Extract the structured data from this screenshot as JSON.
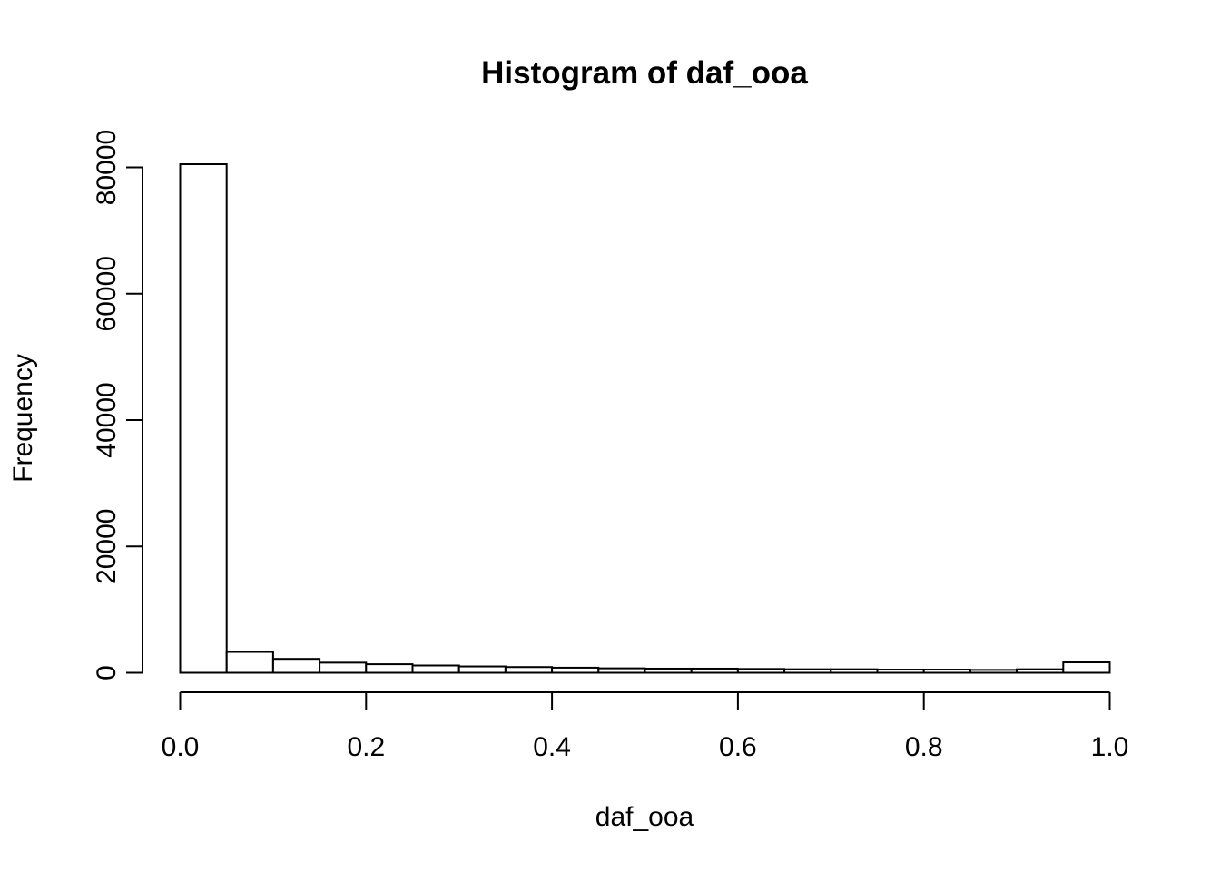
{
  "chart_data": {
    "type": "bar",
    "title": "Histogram of daf_ooa",
    "xlabel": "daf_ooa",
    "ylabel": "Frequency",
    "xlim": [
      0.0,
      1.0
    ],
    "ylim": [
      0,
      80000
    ],
    "x_ticks": [
      0.0,
      0.2,
      0.4,
      0.6,
      0.8,
      1.0
    ],
    "x_tick_labels": [
      "0.0",
      "0.2",
      "0.4",
      "0.6",
      "0.8",
      "1.0"
    ],
    "y_ticks": [
      0,
      20000,
      40000,
      60000,
      80000
    ],
    "y_tick_labels": [
      "0",
      "20000",
      "40000",
      "60000",
      "80000"
    ],
    "bin_width": 0.05,
    "bin_starts": [
      0.0,
      0.05,
      0.1,
      0.15,
      0.2,
      0.25,
      0.3,
      0.35,
      0.4,
      0.45,
      0.5,
      0.55,
      0.6,
      0.65,
      0.7,
      0.75,
      0.8,
      0.85,
      0.9,
      0.95
    ],
    "values": [
      80500,
      3300,
      2200,
      1600,
      1350,
      1150,
      1000,
      900,
      800,
      700,
      650,
      650,
      600,
      550,
      550,
      500,
      500,
      450,
      550,
      1650
    ],
    "bar_fill": "#ffffff",
    "bar_stroke": "#000000",
    "grid": false
  }
}
